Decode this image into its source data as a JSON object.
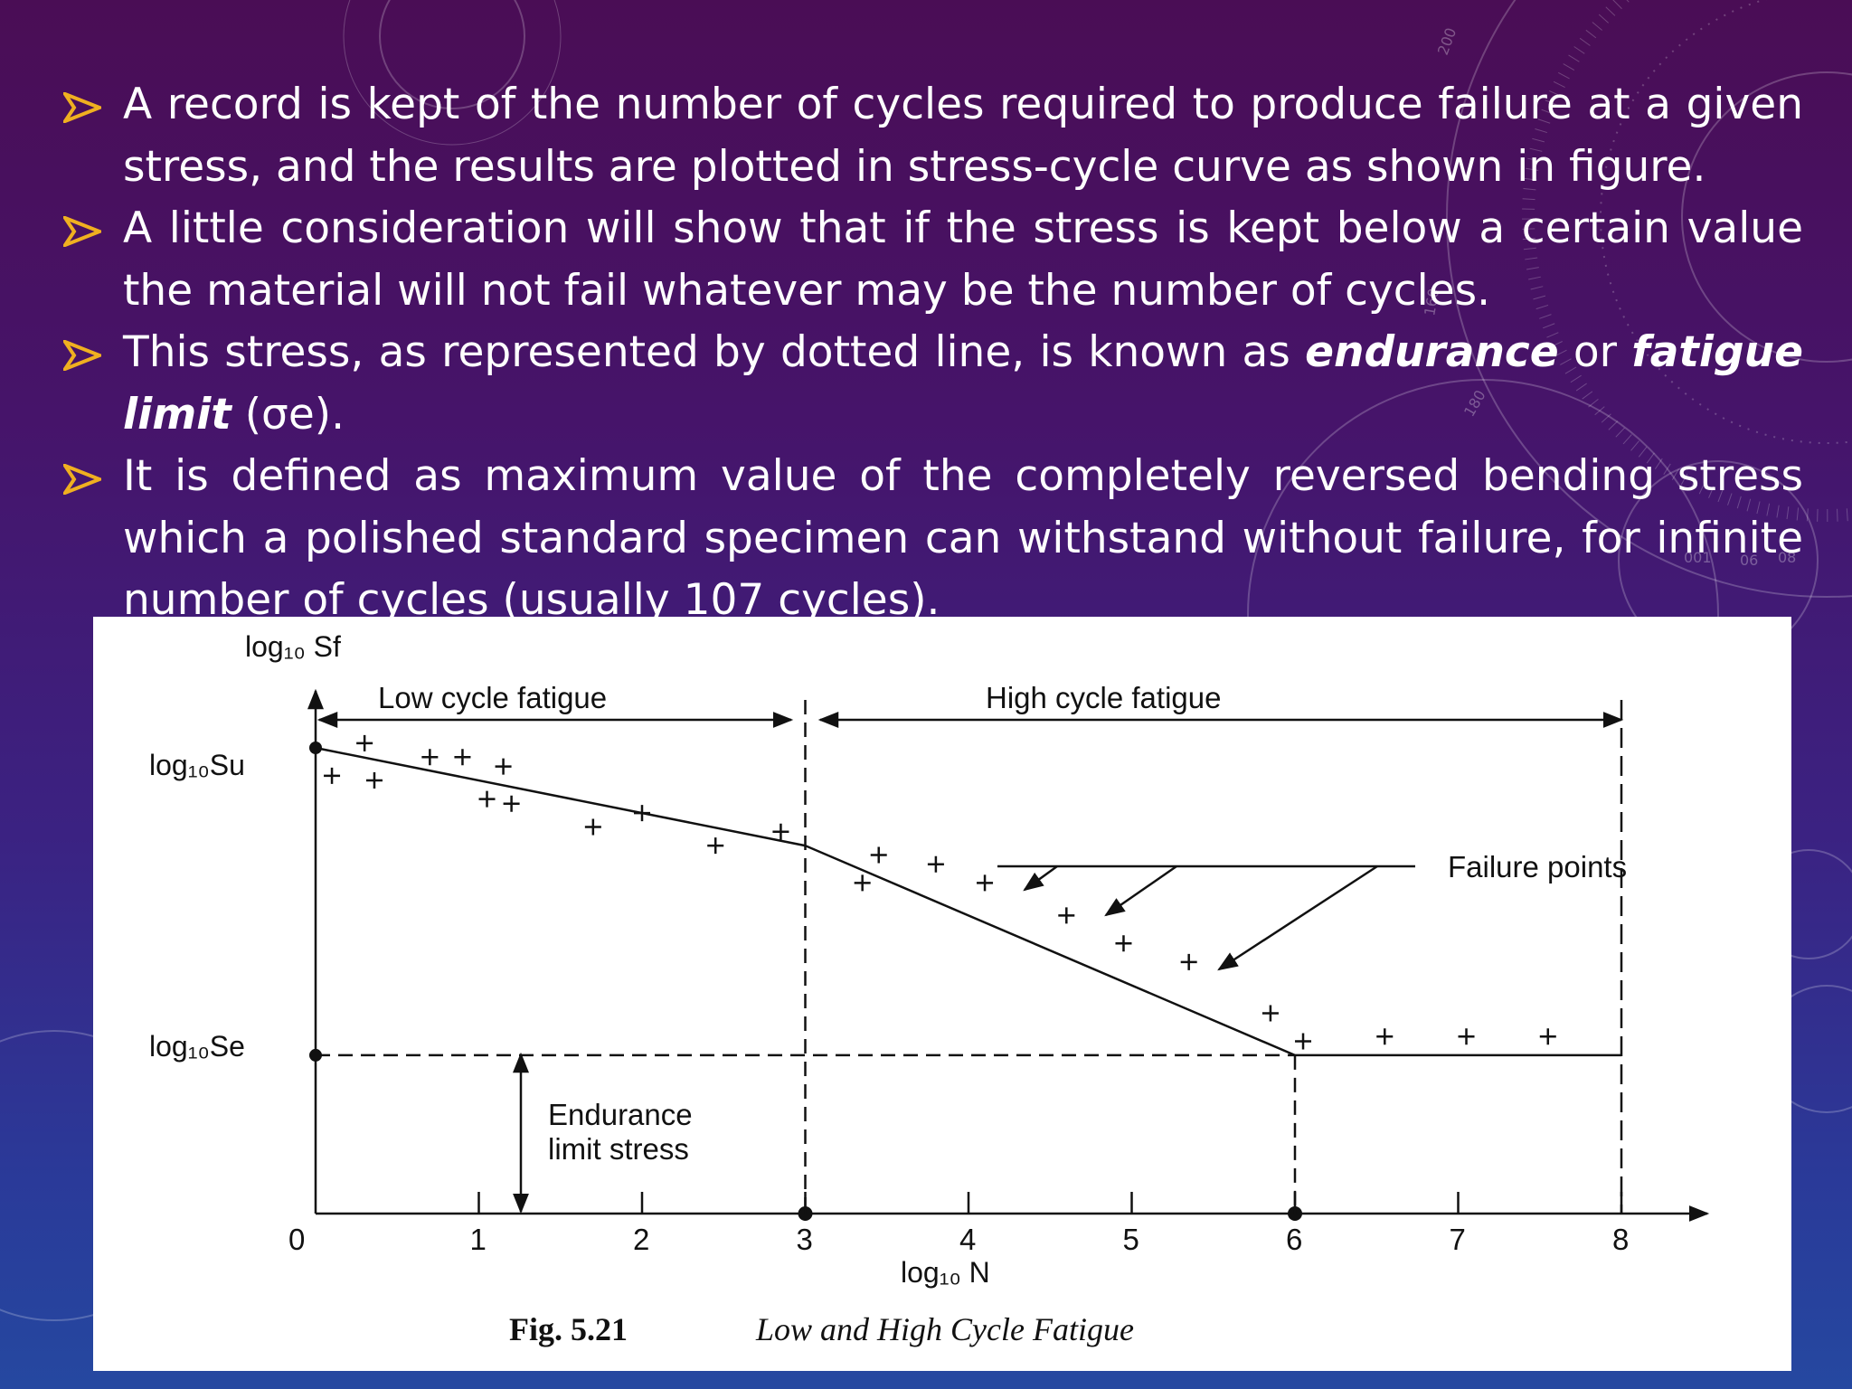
{
  "bullets": [
    {
      "text": "A record is kept of the number of cycles required to produce failure at a given stress, and the results are plotted in stress-cycle curve as shown in figure."
    },
    {
      "text": "A little consideration will show that if the stress is kept below a certain value the material will not fail whatever may be the number of cycles."
    },
    {
      "text_before": "This stress, as represented by dotted line, is known as ",
      "bold1": "endurance",
      "text_mid": " or ",
      "bold2": "fatigue limit",
      "text_after": " (σe)."
    },
    {
      "text": "It is defined as maximum value of the completely reversed bending stress which a polished standard specimen can withstand without failure, for infinite number of cycles (usually 107 cycles)."
    }
  ],
  "colors": {
    "bullet_arrow": "#f0b020",
    "text": "#ffffff",
    "figure_bg": "#ffffff"
  },
  "figure": {
    "y_axis_title": "log₁₀ Sf",
    "x_axis_title": "log₁₀ N",
    "label_su": "log₁₀Su",
    "label_se": "log₁₀Se",
    "region_low": "Low cycle fatigue",
    "region_high": "High cycle fatigue",
    "failure_points": "Failure points",
    "endurance_line1": "Endurance",
    "endurance_line2": "limit stress",
    "caption_num": "Fig. 5.21",
    "caption_text": "Low and High Cycle Fatigue",
    "decor_dial_numbers": [
      "200",
      "160",
      "180",
      "06",
      "08",
      "001"
    ]
  },
  "chart_data": {
    "type": "line",
    "xlabel": "log₁₀ N",
    "ylabel": "log₁₀ Sf",
    "xlim": [
      0,
      8
    ],
    "x_ticks": [
      "0",
      "1",
      "2",
      "3",
      "4",
      "5",
      "6",
      "7",
      "8"
    ],
    "series": [
      {
        "values": [
          [
            0,
            1.0
          ],
          [
            3,
            0.79
          ],
          [
            6,
            0.34
          ],
          [
            8,
            0.34
          ]
        ]
      }
    ],
    "points": [
      [
        0.1,
        0.94
      ],
      [
        0.3,
        1.01
      ],
      [
        0.36,
        0.93
      ],
      [
        0.7,
        0.98
      ],
      [
        0.9,
        0.98
      ],
      [
        1.15,
        0.96
      ],
      [
        1.05,
        0.89
      ],
      [
        1.2,
        0.88
      ],
      [
        1.7,
        0.83
      ],
      [
        2.0,
        0.86
      ],
      [
        2.45,
        0.79
      ],
      [
        2.85,
        0.82
      ],
      [
        3.35,
        0.71
      ],
      [
        3.45,
        0.77
      ],
      [
        3.8,
        0.75
      ],
      [
        4.1,
        0.71
      ],
      [
        4.6,
        0.64
      ],
      [
        4.95,
        0.58
      ],
      [
        5.35,
        0.54
      ],
      [
        5.85,
        0.43
      ],
      [
        6.05,
        0.37
      ],
      [
        6.55,
        0.38
      ],
      [
        7.05,
        0.38
      ],
      [
        7.55,
        0.38
      ]
    ],
    "annotations": [
      "Low cycle fatigue",
      "High cycle fatigue",
      "Failure points",
      "Endurance limit stress"
    ],
    "title": "Low and High Cycle Fatigue"
  }
}
